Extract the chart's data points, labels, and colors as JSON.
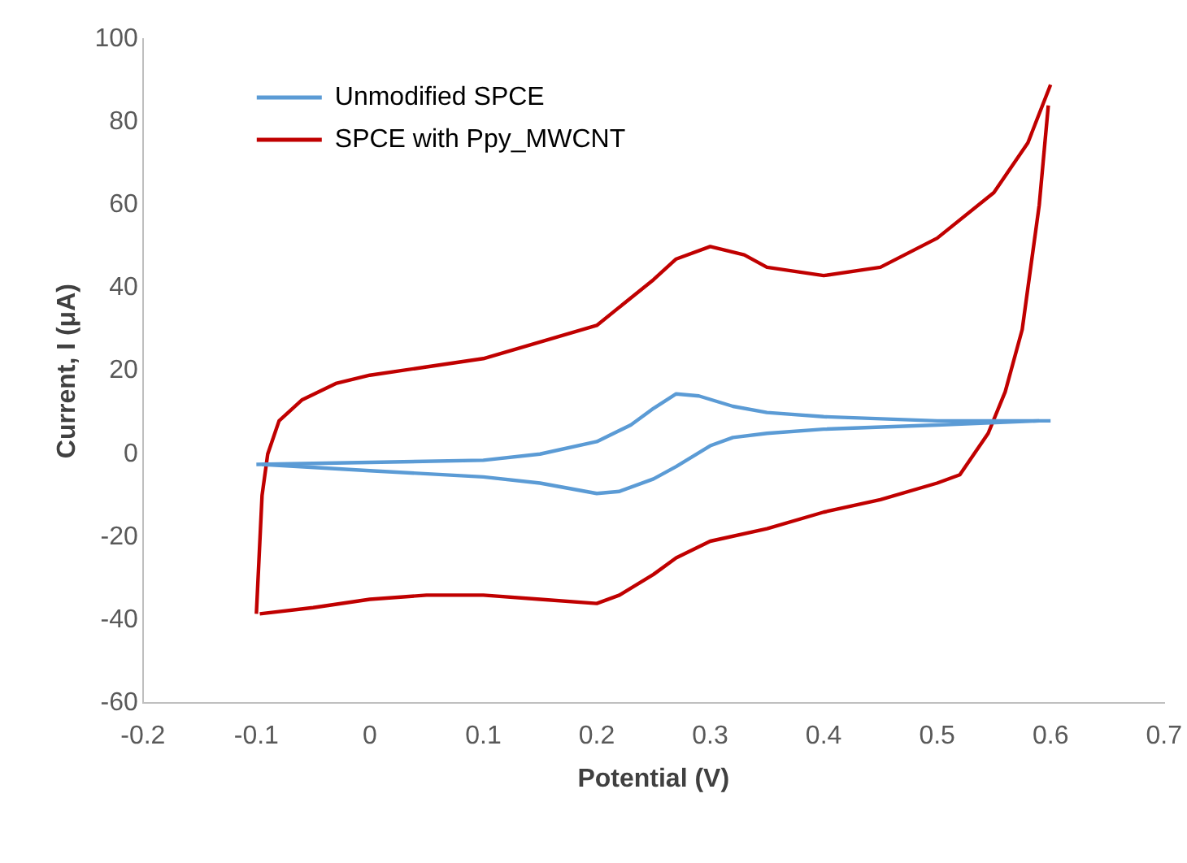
{
  "chart_data": {
    "type": "line",
    "xlabel": "Potential (V)",
    "ylabel": "Current, I (μA)",
    "xlim": [
      -0.2,
      0.7
    ],
    "xticks": [
      -0.2,
      -0.1,
      0,
      0.1,
      0.2,
      0.3,
      0.4,
      0.5,
      0.6,
      0.7
    ],
    "ylim": [
      -60,
      100
    ],
    "yticks": [
      -60,
      -40,
      -20,
      0,
      20,
      40,
      60,
      80,
      100
    ],
    "grid": false,
    "legend": "top left",
    "marker": "none",
    "line_style": "solid",
    "series": [
      {
        "name": "Unmodified SPCE",
        "color": "#5b9bd5",
        "x": [
          -0.1,
          0,
          0.1,
          0.15,
          0.2,
          0.23,
          0.25,
          0.27,
          0.29,
          0.32,
          0.35,
          0.4,
          0.5,
          0.6
        ],
        "values": [
          -2.5,
          -2,
          -1.5,
          0,
          3,
          7,
          11,
          14.5,
          14,
          11.5,
          10,
          9,
          8,
          8
        ]
      },
      {
        "color": "#5b9bd5",
        "x": [
          -0.095,
          0,
          0.1,
          0.15,
          0.2,
          0.22,
          0.25,
          0.27,
          0.3,
          0.32,
          0.35,
          0.4,
          0.5,
          0.59
        ],
        "values": [
          -2.5,
          -4,
          -5.5,
          -7,
          -9.5,
          -9,
          -6,
          -3,
          2,
          4,
          5,
          6,
          7,
          8
        ]
      },
      {
        "name": "SPCE with Ppy_MWCNT",
        "color": "#c00000",
        "x": [
          -0.1,
          -0.095,
          -0.09,
          -0.08,
          -0.06,
          -0.03,
          0,
          0.05,
          0.1,
          0.15,
          0.2,
          0.25,
          0.27,
          0.3,
          0.33,
          0.35,
          0.4,
          0.45,
          0.5,
          0.55,
          0.58,
          0.6
        ],
        "values": [
          -38.5,
          -10,
          0,
          8,
          13,
          17,
          19,
          21,
          23,
          27,
          31,
          42,
          47,
          50,
          48,
          45,
          43,
          45,
          52,
          63,
          75,
          89
        ]
      },
      {
        "color": "#c00000",
        "x": [
          -0.097,
          -0.05,
          0,
          0.05,
          0.1,
          0.15,
          0.2,
          0.22,
          0.25,
          0.27,
          0.3,
          0.35,
          0.4,
          0.45,
          0.5,
          0.52,
          0.545,
          0.56,
          0.575,
          0.59,
          0.598
        ],
        "values": [
          -38.5,
          -37,
          -35,
          -34,
          -34,
          -35,
          -36,
          -34,
          -29,
          -25,
          -21,
          -18,
          -14,
          -11,
          -7,
          -5,
          5,
          15,
          30,
          60,
          84
        ]
      }
    ]
  }
}
